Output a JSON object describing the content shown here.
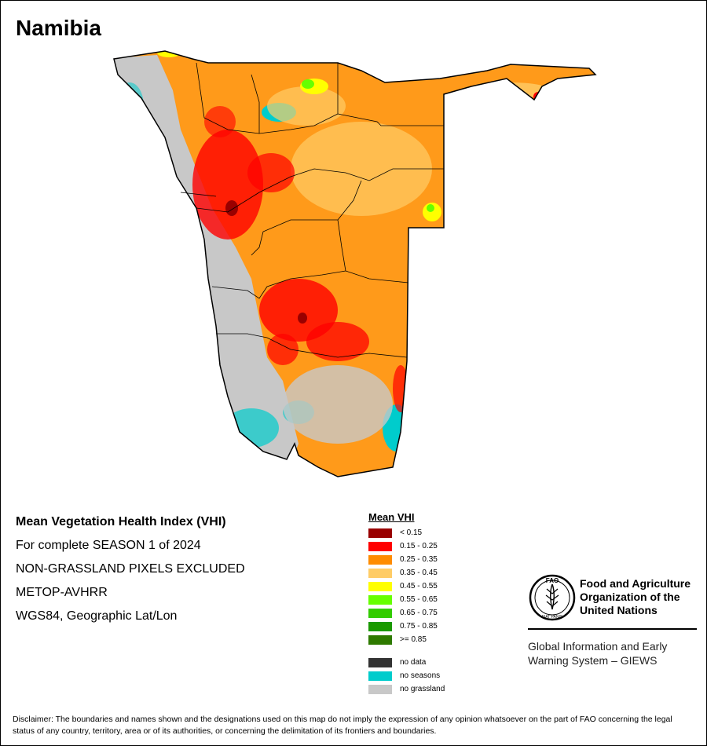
{
  "map": {
    "country": "Namibia",
    "title": "Mean Vegetation Health Index (VHI)",
    "season_line": "For complete SEASON 1 of 2024",
    "exclusion_note": "NON-GRASSLAND PIXELS EXCLUDED",
    "sensor": "METOP-AVHRR",
    "projection": "WGS84, Geographic Lat/Lon"
  },
  "legend": {
    "title": "Mean VHI",
    "classes": [
      {
        "label": "< 0.15",
        "color": "#990000"
      },
      {
        "label": "0.15 - 0.25",
        "color": "#ff0000"
      },
      {
        "label": "0.25 - 0.35",
        "color": "#ff8c00"
      },
      {
        "label": "0.35 - 0.45",
        "color": "#ffcc66"
      },
      {
        "label": "0.45 - 0.55",
        "color": "#ffff00"
      },
      {
        "label": "0.55 - 0.65",
        "color": "#66ff00"
      },
      {
        "label": "0.65 - 0.75",
        "color": "#33cc00"
      },
      {
        "label": "0.75 - 0.85",
        "color": "#1a9900"
      },
      {
        "label": ">= 0.85",
        "color": "#2e7a00"
      }
    ],
    "extra": [
      {
        "label": "no data",
        "color": "#333333"
      },
      {
        "label": "no seasons",
        "color": "#00cccc"
      },
      {
        "label": "no grassland",
        "color": "#c8c8c8"
      }
    ]
  },
  "logo": {
    "org_line1": "Food and Agriculture",
    "org_line2": "Organization of the",
    "org_line3": "United Nations",
    "emblem_top": "FAO",
    "emblem_bottom": "FIAT PANIS",
    "system_line1": "Global Information and Early",
    "system_line2": "Warning System – GIEWS"
  },
  "disclaimer": "Disclaimer: The boundaries and names shown and the designations used on this map do not imply the expression of any opinion whatsoever on the part of FAO concerning the legal status of any country, territory, area or of its authorities, or concerning the delimitation of its frontiers and boundaries."
}
